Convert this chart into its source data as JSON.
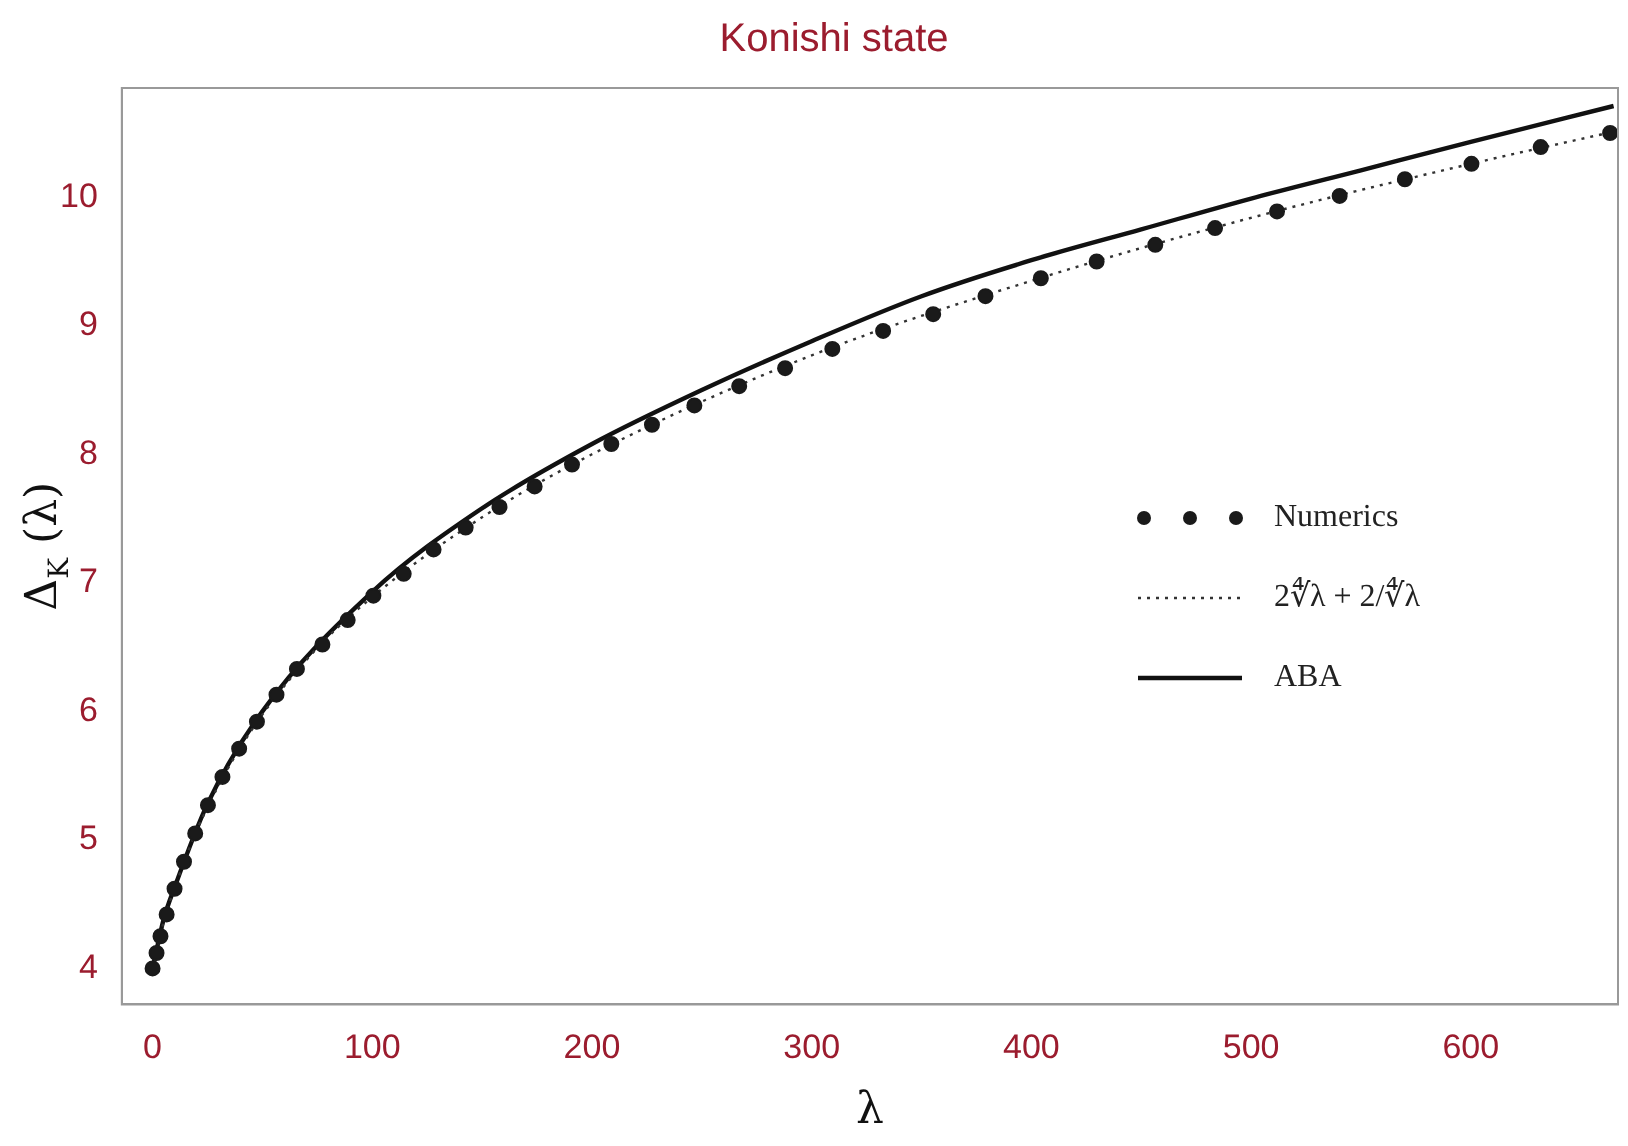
{
  "chart_data": {
    "type": "scatter",
    "title": "Konishi state",
    "xlabel": "λ",
    "ylabel": "Δ$_{K}$ (λ)",
    "xlim": [
      -14,
      667
    ],
    "ylim": [
      3.72,
      10.85
    ],
    "xticks": [
      0,
      100,
      200,
      300,
      400,
      500,
      600
    ],
    "yticks": [
      4,
      5,
      6,
      7,
      8,
      9,
      10
    ],
    "grid": false,
    "legend": "right",
    "series": [
      {
        "name": "Numerics",
        "marker": "circle",
        "color": "#1a1a1a",
        "x": [
          0,
          1.8,
          3.6,
          6.4,
          10,
          14.3,
          19.4,
          25.2,
          31.8,
          39.4,
          47.5,
          56.4,
          65.7,
          77.3,
          88.8,
          100.5,
          114.3,
          127.9,
          142.5,
          157.9,
          173.9,
          190.9,
          208.8,
          227.3,
          246.6,
          267,
          287.9,
          309.4,
          332.5,
          355.3,
          379.1,
          404.3,
          429.7,
          456.4,
          483.6,
          511.8,
          540.3,
          570,
          600.3,
          631.8,
          663.4
        ],
        "values": [
          4,
          4.12,
          4.25,
          4.42,
          4.62,
          4.83,
          5.05,
          5.27,
          5.49,
          5.71,
          5.92,
          6.13,
          6.33,
          6.52,
          6.71,
          6.9,
          7.07,
          7.26,
          7.43,
          7.59,
          7.75,
          7.92,
          8.08,
          8.23,
          8.38,
          8.53,
          8.67,
          8.82,
          8.96,
          9.09,
          9.23,
          9.37,
          9.5,
          9.63,
          9.76,
          9.89,
          10.01,
          10.14,
          10.26,
          10.39,
          10.5
        ]
      },
      {
        "name": "2∜λ + 2/∜λ",
        "type": "line",
        "line_style": "dotted",
        "color": "#333333",
        "x": [
          1,
          5,
          10,
          20,
          40,
          70,
          100,
          150,
          200,
          300,
          400,
          500,
          600,
          665
        ],
        "values": [
          4.05,
          4.36,
          4.62,
          5.07,
          5.72,
          6.4,
          6.89,
          7.51,
          8,
          8.77,
          9.35,
          9.84,
          10.26,
          10.51
        ]
      },
      {
        "name": "ABA",
        "type": "line",
        "line_style": "solid",
        "color": "#111111",
        "x": [
          0,
          5,
          10,
          25,
          50,
          100,
          150,
          200,
          250,
          300,
          350,
          400,
          450,
          500,
          550,
          600,
          665
        ],
        "values": [
          4,
          4.38,
          4.63,
          5.28,
          6,
          6.93,
          7.58,
          8.08,
          8.5,
          8.88,
          9.23,
          9.51,
          9.75,
          9.99,
          10.21,
          10.43,
          10.71
        ]
      }
    ]
  }
}
